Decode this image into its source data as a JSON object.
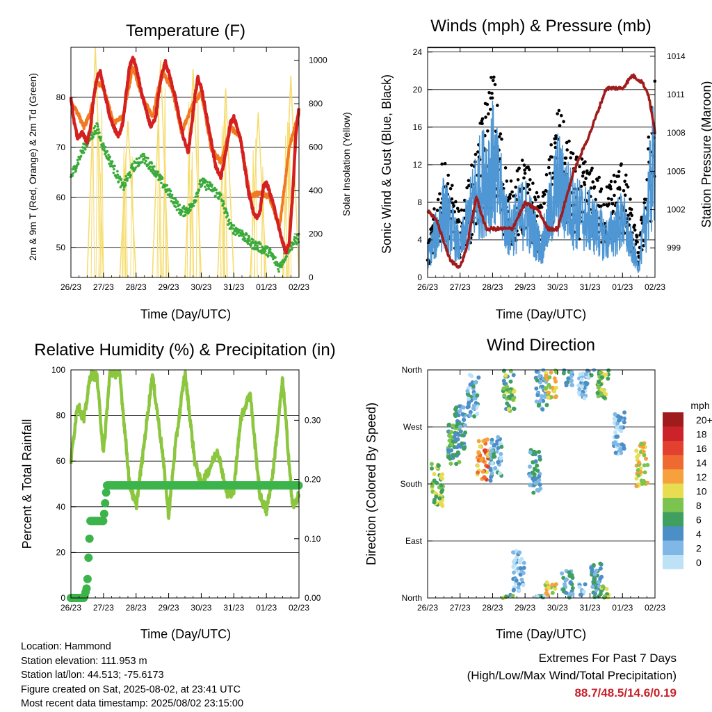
{
  "panels": {
    "temperature": {
      "title": "Temperature (F)",
      "xlabel": "Time (Day/UTC)",
      "ylabel_left": "2m & 9m T (Red, Orange) & 2m Td (Green)",
      "ylabel_right": "Solar Insolation (Yellow)",
      "x_ticks": [
        "26/23",
        "27/23",
        "28/23",
        "29/23",
        "30/23",
        "31/23",
        "01/23",
        "02/23"
      ],
      "y_ticks_left": [
        "50",
        "60",
        "70",
        "80"
      ],
      "y_ticks_right": [
        "0",
        "200",
        "400",
        "600",
        "800",
        "1000"
      ]
    },
    "winds": {
      "title": "Winds (mph) & Pressure (mb)",
      "xlabel": "Time (Day/UTC)",
      "ylabel_left": "Sonic Wind & Gust (Blue, Black)",
      "ylabel_right": "Station Pressure (Maroon)",
      "x_ticks": [
        "26/23",
        "27/23",
        "28/23",
        "29/23",
        "30/23",
        "31/23",
        "01/23",
        "02/23"
      ],
      "y_ticks_left": [
        "0",
        "4",
        "8",
        "12",
        "16",
        "20",
        "24"
      ],
      "y_ticks_right": [
        "999",
        "1002",
        "1005",
        "1008",
        "1011",
        "1014"
      ]
    },
    "humidity": {
      "title": "Relative Humidity (%) & Precipitation (in)",
      "xlabel": "Time (Day/UTC)",
      "ylabel_left": "Percent & Total Rainfall",
      "x_ticks": [
        "26/23",
        "27/23",
        "28/23",
        "29/23",
        "30/23",
        "31/23",
        "01/23",
        "02/23"
      ],
      "y_ticks_left": [
        "0",
        "20",
        "40",
        "60",
        "80",
        "100"
      ],
      "y_ticks_right": [
        "0.00",
        "0.10",
        "0.20",
        "0.30"
      ]
    },
    "direction": {
      "title": "Wind Direction",
      "xlabel": "Time (Day/UTC)",
      "ylabel_left": "Direction (Colored By Speed)",
      "x_ticks": [
        "26/23",
        "27/23",
        "28/23",
        "29/23",
        "30/23",
        "31/23",
        "01/23",
        "02/23"
      ],
      "y_ticks_left": [
        "North",
        "East",
        "South",
        "West",
        "North"
      ],
      "legend_title": "mph",
      "legend_labels": [
        "20+",
        "18",
        "16",
        "14",
        "12",
        "10",
        "8",
        "6",
        "4",
        "2",
        "0"
      ],
      "legend_colors": [
        "#a01c1c",
        "#cc2229",
        "#e2412f",
        "#ef6a30",
        "#f6a13e",
        "#e8dc50",
        "#7cc44f",
        "#3f9f5f",
        "#4c8ec6",
        "#7fb8e6",
        "#bde2f6"
      ]
    }
  },
  "colors": {
    "temp_2m": "#d42020",
    "temp_9m": "#f07a22",
    "dewpoint": "#3aab3a",
    "solar": "#f6dc6e",
    "wind": "#4f97d4",
    "gust": "#000000",
    "pressure": "#a01c1c",
    "rh": "#8cc63f",
    "precip": "#3cb44b"
  },
  "chart_data": [
    {
      "type": "line",
      "title": "Temperature (F)",
      "xlabel": "Time (Day/UTC)",
      "ylabel": "2m & 9m T (Red, Orange) & 2m Td (Green)",
      "y2label": "Solar Insolation (Yellow)",
      "x_ticks": [
        "26/23",
        "27/23",
        "28/23",
        "29/23",
        "30/23",
        "31/23",
        "01/23",
        "02/23"
      ],
      "ylim": [
        44,
        90
      ],
      "y2lim": [
        0,
        1060
      ],
      "grid": true,
      "series": [
        {
          "name": "2m T",
          "axis": "left",
          "x": [
            0,
            0.1,
            0.2,
            0.35,
            0.5,
            0.6,
            0.7,
            0.8,
            0.9,
            1.0,
            1.2,
            1.45,
            1.6,
            1.7,
            1.8,
            1.9,
            2.0,
            2.2,
            2.45,
            2.6,
            2.7,
            2.8,
            2.9,
            3.0,
            3.2,
            3.45,
            3.6,
            3.7,
            3.8,
            3.9,
            4.0,
            4.2,
            4.45,
            4.6,
            4.7,
            4.8,
            4.9,
            5.0,
            5.2,
            5.45,
            5.6,
            5.7,
            5.8,
            5.9,
            6.0,
            6.2,
            6.45,
            6.6,
            6.7,
            6.8,
            6.9,
            7.0
          ],
          "y": [
            80,
            75,
            72,
            73,
            71,
            74,
            80,
            84,
            85,
            82,
            76,
            72,
            75,
            81,
            86,
            88,
            86,
            80,
            74,
            76,
            81,
            85,
            87,
            85,
            80,
            72,
            69,
            74,
            80,
            84,
            82,
            75,
            66,
            64,
            67,
            71,
            75,
            76,
            72,
            61,
            57,
            56,
            57,
            62,
            63,
            59,
            52,
            49,
            51,
            60,
            72,
            78
          ]
        },
        {
          "name": "9m T",
          "axis": "left",
          "x": [
            0,
            0.2,
            0.4,
            0.6,
            0.8,
            1.0,
            1.3,
            1.6,
            1.9,
            2.2,
            2.5,
            2.8,
            3.1,
            3.4,
            3.7,
            4.0,
            4.3,
            4.6,
            4.9,
            5.2,
            5.5,
            5.8,
            6.1,
            6.4,
            6.7,
            7.0
          ],
          "y": [
            79,
            77,
            74,
            77,
            83,
            82,
            75,
            76,
            86,
            80,
            76,
            85,
            82,
            73,
            78,
            81,
            70,
            67,
            74,
            72,
            60,
            61,
            60,
            54,
            70,
            77
          ]
        },
        {
          "name": "2m Td",
          "axis": "left",
          "x": [
            0,
            0.2,
            0.4,
            0.6,
            0.8,
            1.0,
            1.3,
            1.6,
            1.9,
            2.2,
            2.5,
            2.8,
            3.1,
            3.4,
            3.7,
            4.0,
            4.3,
            4.6,
            4.9,
            5.2,
            5.5,
            5.8,
            6.1,
            6.4,
            6.7,
            7.0
          ],
          "y": [
            64,
            67,
            70,
            72,
            74,
            70,
            66,
            62,
            66,
            68,
            66,
            63,
            60,
            57,
            58,
            63,
            62,
            60,
            54,
            53,
            51,
            50,
            49,
            46,
            50,
            52
          ]
        },
        {
          "name": "Solar Insolation",
          "axis": "right",
          "x": [
            0.5,
            0.75,
            1.0,
            1.5,
            1.75,
            2.0,
            2.5,
            2.75,
            3.0,
            3.5,
            3.75,
            4.0,
            4.5,
            4.75,
            5.0,
            5.5,
            5.75,
            6.0,
            6.5,
            6.75,
            7.0
          ],
          "y": [
            0,
            1060,
            0,
            0,
            720,
            0,
            0,
            1000,
            0,
            0,
            960,
            0,
            0,
            870,
            0,
            0,
            760,
            0,
            0,
            930,
            0
          ]
        }
      ]
    },
    {
      "type": "line",
      "title": "Winds (mph) & Pressure (mb)",
      "xlabel": "Time (Day/UTC)",
      "ylabel": "Sonic Wind & Gust (Blue, Black)",
      "y2label": "Station Pressure (Maroon)",
      "x_ticks": [
        "26/23",
        "27/23",
        "28/23",
        "29/23",
        "30/23",
        "31/23",
        "01/23",
        "02/23"
      ],
      "ylim": [
        0,
        24.5
      ],
      "y2lim": [
        996.7,
        1014.7
      ],
      "grid": true,
      "series": [
        {
          "name": "Sonic Wind",
          "axis": "left",
          "x": [
            0,
            0.5,
            1.0,
            1.5,
            2.0,
            2.5,
            3.0,
            3.5,
            4.0,
            4.5,
            5.0,
            5.5,
            6.0,
            6.5,
            7.0
          ],
          "y": [
            2,
            7,
            3,
            9,
            12,
            5,
            7,
            3,
            10,
            7,
            6,
            4,
            6,
            1,
            13
          ]
        },
        {
          "name": "Gust",
          "axis": "left",
          "x": [
            0,
            0.5,
            1.0,
            1.5,
            2.0,
            2.5,
            3.0,
            3.5,
            4.0,
            4.5,
            5.0,
            5.5,
            6.0,
            6.5,
            7.0
          ],
          "y": [
            3,
            12,
            6,
            13,
            21,
            9,
            12,
            7,
            17,
            12,
            11,
            9,
            12,
            3,
            21
          ]
        },
        {
          "name": "Station Pressure",
          "axis": "right",
          "x": [
            0,
            0.3,
            0.7,
            1.0,
            1.2,
            1.5,
            1.8,
            2.2,
            2.6,
            3.0,
            3.4,
            3.7,
            4.0,
            4.5,
            5.0,
            5.5,
            6.0,
            6.3,
            6.6,
            6.8,
            7.0
          ],
          "y": [
            1002,
            1001,
            998,
            997.5,
            999,
            1003,
            1000.5,
            1000.5,
            1000.5,
            1002.5,
            1002,
            1000.5,
            1000.5,
            1005,
            1008,
            1011.5,
            1011.5,
            1012.5,
            1012,
            1011,
            1008
          ]
        }
      ]
    },
    {
      "type": "line",
      "title": "Relative Humidity (%) & Precipitation (in)",
      "xlabel": "Time (Day/UTC)",
      "ylabel": "Percent & Total Rainfall",
      "x_ticks": [
        "26/23",
        "27/23",
        "28/23",
        "29/23",
        "30/23",
        "31/23",
        "01/23",
        "02/23"
      ],
      "ylim": [
        0,
        100
      ],
      "y2lim": [
        0,
        0.385
      ],
      "grid": true,
      "series": [
        {
          "name": "Relative Humidity",
          "axis": "left",
          "x": [
            0,
            0.2,
            0.4,
            0.6,
            0.8,
            1.0,
            1.2,
            1.5,
            1.8,
            2.0,
            2.2,
            2.5,
            2.8,
            3.0,
            3.2,
            3.5,
            3.8,
            4.0,
            4.2,
            4.5,
            4.8,
            5.0,
            5.2,
            5.5,
            5.8,
            6.0,
            6.2,
            6.5,
            6.8,
            7.0
          ],
          "y": [
            60,
            85,
            78,
            98,
            97,
            63,
            99,
            98,
            50,
            40,
            62,
            98,
            65,
            36,
            66,
            99,
            60,
            50,
            55,
            65,
            45,
            47,
            78,
            90,
            45,
            38,
            55,
            96,
            40,
            45
          ]
        },
        {
          "name": "Total Precipitation",
          "axis": "right",
          "x": [
            0,
            0.4,
            0.5,
            0.55,
            0.6,
            1.0,
            1.1,
            2.0,
            3.0,
            4.0,
            5.0,
            6.0,
            7.0
          ],
          "y": [
            0,
            0,
            0.02,
            0.08,
            0.13,
            0.13,
            0.19,
            0.19,
            0.19,
            0.19,
            0.19,
            0.19,
            0.19
          ]
        }
      ]
    },
    {
      "type": "scatter",
      "title": "Wind Direction",
      "xlabel": "Time (Day/UTC)",
      "ylabel": "Direction (Colored By Speed)",
      "x_ticks": [
        "26/23",
        "27/23",
        "28/23",
        "29/23",
        "30/23",
        "31/23",
        "01/23",
        "02/23"
      ],
      "y_ticks": [
        "North",
        "East",
        "South",
        "West",
        "North"
      ],
      "ylim": [
        0,
        360
      ],
      "legend": {
        "title": "mph",
        "labels": [
          "20+",
          "18",
          "16",
          "14",
          "12",
          "10",
          "8",
          "6",
          "4",
          "2",
          "0"
        ],
        "placement": "right"
      },
      "clusters": [
        {
          "x": 0.3,
          "dir": 180,
          "speed": 8
        },
        {
          "x": 0.8,
          "dir": 240,
          "speed": 6
        },
        {
          "x": 1.0,
          "dir": 270,
          "speed": 4
        },
        {
          "x": 1.4,
          "dir": 320,
          "speed": 3
        },
        {
          "x": 1.7,
          "dir": 220,
          "speed": 13
        },
        {
          "x": 2.1,
          "dir": 220,
          "speed": 3
        },
        {
          "x": 2.5,
          "dir": 330,
          "speed": 7
        },
        {
          "x": 2.8,
          "dir": 40,
          "speed": 2
        },
        {
          "x": 3.3,
          "dir": 200,
          "speed": 4
        },
        {
          "x": 3.5,
          "dir": 330,
          "speed": 3
        },
        {
          "x": 3.8,
          "dir": 350,
          "speed": 10
        },
        {
          "x": 4.3,
          "dir": 10,
          "speed": 4
        },
        {
          "x": 4.8,
          "dir": 350,
          "speed": 2
        },
        {
          "x": 5.2,
          "dir": 20,
          "speed": 4
        },
        {
          "x": 5.4,
          "dir": 350,
          "speed": 8
        },
        {
          "x": 5.9,
          "dir": 260,
          "speed": 2
        },
        {
          "x": 6.6,
          "dir": 210,
          "speed": 10
        }
      ]
    }
  ],
  "station": {
    "location": "Location: Hammond",
    "elevation": "Station elevation: 111.953 m",
    "latlon": "Station lat/lon: 44.513; -75.6173",
    "created": "Figure created on Sat, 2025-08-02, at 23:41 UTC",
    "recent": "Most recent data timestamp: 2025/08/02 23:15:00"
  },
  "extremes": {
    "title": "Extremes For Past 7 Days",
    "subtitle": "(High/Low/Max Wind/Total Precipitation)",
    "values": "88.7/48.5/14.6/0.19"
  }
}
